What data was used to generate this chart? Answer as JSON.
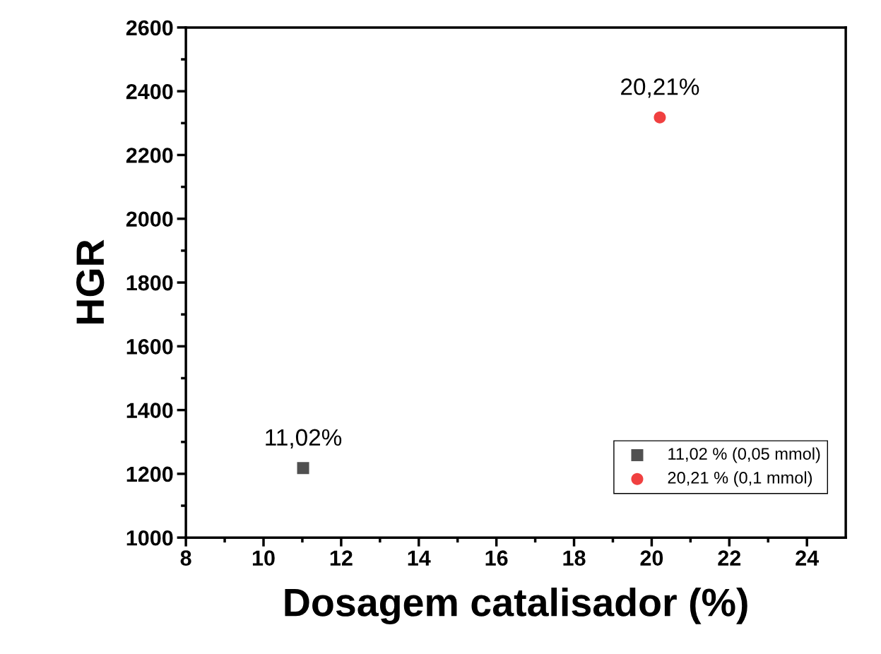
{
  "chart_data": {
    "type": "scatter",
    "xlabel": "Dosagem catalisador (%)",
    "ylabel": "HGR",
    "series": [
      {
        "name": "11,02 % (0,05 mmol)",
        "color": "#505050",
        "marker": "square",
        "x": [
          11.02
        ],
        "values": [
          1218
        ]
      },
      {
        "name": "20,21 % (0,1 mmol)",
        "color": "#f04040",
        "marker": "circle",
        "x": [
          20.21
        ],
        "values": [
          2318
        ]
      }
    ],
    "annotations": [
      {
        "text": "11,02%",
        "x": 11.02,
        "y": 1218
      },
      {
        "text": "20,21%",
        "x": 20.21,
        "y": 2318
      }
    ],
    "xlim": [
      8,
      25
    ],
    "xticks": [
      8,
      10,
      12,
      14,
      16,
      18,
      20,
      22,
      24
    ],
    "ylim": [
      1000,
      2600
    ],
    "yticks": [
      1000,
      1200,
      1400,
      1600,
      1800,
      2000,
      2200,
      2400,
      2600
    ],
    "grid": false,
    "legend": "bottom right"
  }
}
